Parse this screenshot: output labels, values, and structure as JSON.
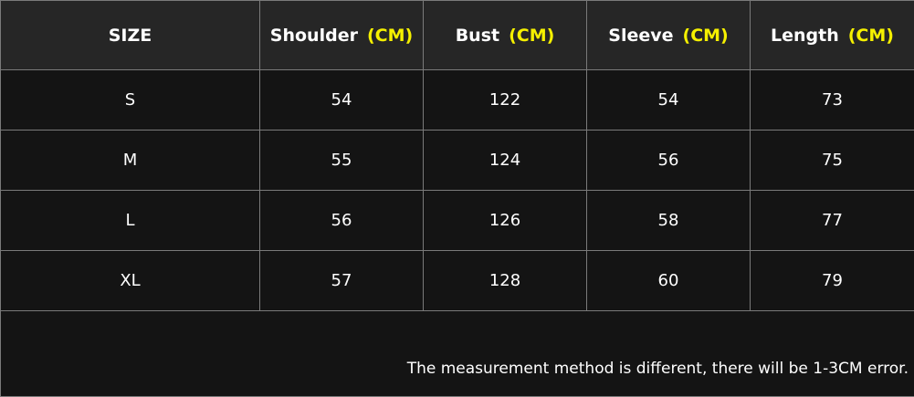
{
  "table": {
    "headers": [
      {
        "label": "SIZE",
        "unit": ""
      },
      {
        "label": "Shoulder",
        "unit": "(CM)"
      },
      {
        "label": "Bust",
        "unit": "(CM)"
      },
      {
        "label": "Sleeve",
        "unit": "(CM)"
      },
      {
        "label": "Length",
        "unit": "(CM)"
      }
    ],
    "rows": [
      [
        "S",
        "54",
        "122",
        "54",
        "73"
      ],
      [
        "M",
        "55",
        "124",
        "56",
        "75"
      ],
      [
        "L",
        "56",
        "126",
        "58",
        "77"
      ],
      [
        "XL",
        "57",
        "128",
        "60",
        "79"
      ]
    ],
    "note": "The measurement method is different, there will be 1-3CM error."
  },
  "colors": {
    "header_bg": "#262626",
    "body_bg": "#141414",
    "unit_accent": "#f5f000"
  }
}
